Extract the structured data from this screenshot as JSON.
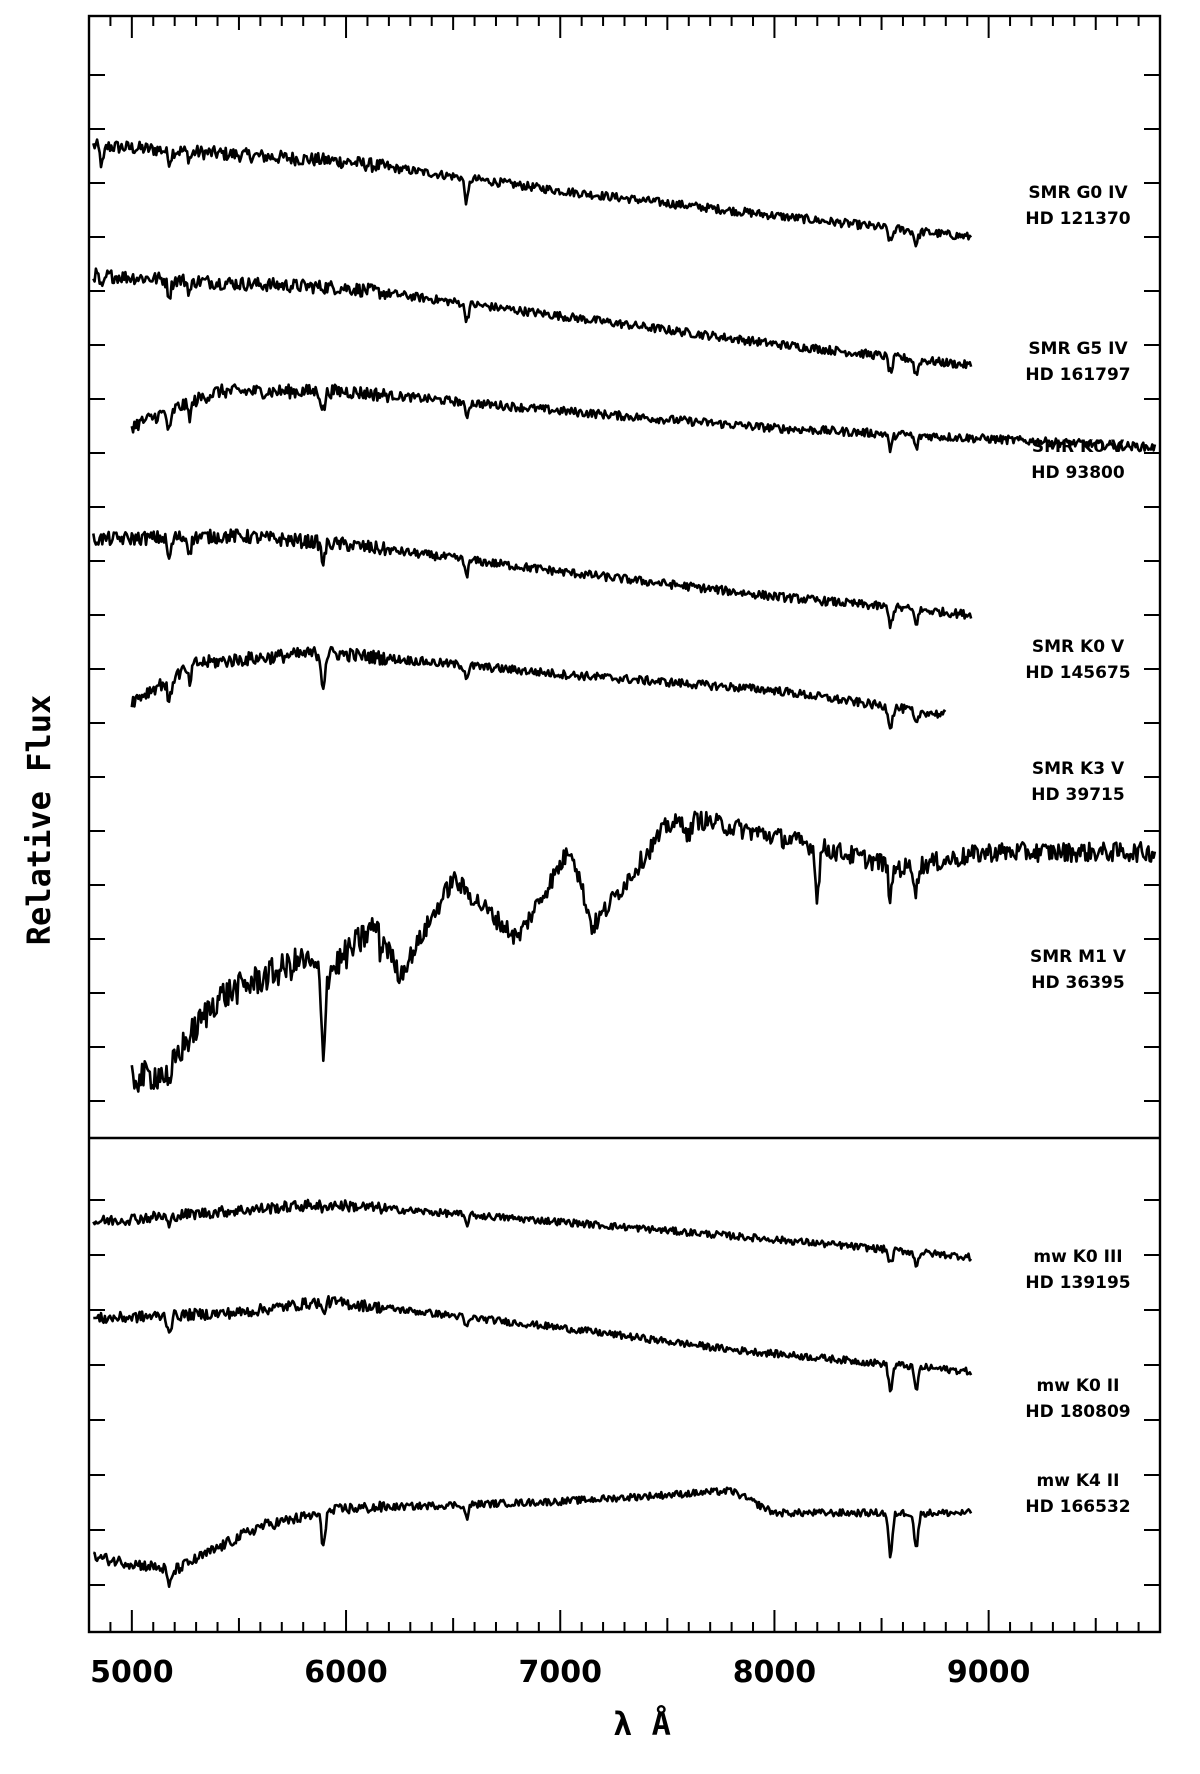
{
  "chart_data": {
    "type": "line",
    "title": "",
    "xlabel": "λ Å",
    "ylabel": "Relative Flux",
    "xlim": [
      4800,
      9800
    ],
    "x_ticks": [
      5000,
      6000,
      7000,
      8000,
      9000
    ],
    "grid": false,
    "legend": "none",
    "panels": [
      {
        "name": "upper",
        "series": [
          {
            "label_line1": "SMR G0 IV",
            "label_line2": "HD 121370",
            "x_range": [
              4820,
              8920
            ],
            "continuum": [
              [
                4820,
                4.2
              ],
              [
                6000,
                4.05
              ],
              [
                7000,
                3.78
              ],
              [
                8000,
                3.55
              ],
              [
                8920,
                3.35
              ]
            ],
            "absorption": [
              [
                4861,
                0.18
              ],
              [
                5175,
                0.09
              ],
              [
                5270,
                0.06
              ],
              [
                6563,
                0.22
              ],
              [
                8542,
                0.13
              ],
              [
                8662,
                0.12
              ]
            ]
          },
          {
            "label_line1": "SMR G5 IV",
            "label_line2": "HD 161797",
            "x_range": [
              4820,
              8920
            ],
            "continuum": [
              [
                4820,
                3.0
              ],
              [
                5500,
                2.92
              ],
              [
                6000,
                2.88
              ],
              [
                7000,
                2.62
              ],
              [
                8000,
                2.36
              ],
              [
                8920,
                2.16
              ]
            ],
            "absorption": [
              [
                4861,
                0.14
              ],
              [
                5175,
                0.14
              ],
              [
                5270,
                0.1
              ],
              [
                6563,
                0.14
              ],
              [
                8542,
                0.15
              ],
              [
                8662,
                0.14
              ]
            ]
          },
          {
            "label_line1": "SMR K0 V",
            "label_line2": "HD 93800",
            "x_range": [
              5000,
              9780
            ],
            "continuum": [
              [
                5000,
                1.6
              ],
              [
                5400,
                1.92
              ],
              [
                6000,
                1.92
              ],
              [
                7000,
                1.74
              ],
              [
                8000,
                1.58
              ],
              [
                9000,
                1.48
              ],
              [
                9780,
                1.4
              ]
            ],
            "absorption": [
              [
                5175,
                0.2
              ],
              [
                5270,
                0.12
              ],
              [
                5893,
                0.18
              ],
              [
                6563,
                0.12
              ],
              [
                8542,
                0.14
              ],
              [
                8662,
                0.12
              ]
            ]
          },
          {
            "label_line1": "SMR K0 V",
            "label_line2": "HD 145675",
            "x_range": [
              4820,
              8920
            ],
            "continuum": [
              [
                4820,
                0.55
              ],
              [
                5500,
                0.58
              ],
              [
                6000,
                0.5
              ],
              [
                7000,
                0.25
              ],
              [
                8000,
                0.02
              ],
              [
                8920,
                -0.15
              ]
            ],
            "absorption": [
              [
                5175,
                0.2
              ],
              [
                5270,
                0.12
              ],
              [
                5893,
                0.18
              ],
              [
                6563,
                0.13
              ],
              [
                8542,
                0.16
              ],
              [
                8662,
                0.12
              ]
            ]
          },
          {
            "label_line1": "SMR K3 V",
            "label_line2": "HD 39715",
            "x_range": [
              5000,
              8800
            ],
            "continuum": [
              [
                5000,
                -0.95
              ],
              [
                5300,
                -0.6
              ],
              [
                5900,
                -0.5
              ],
              [
                7000,
                -0.7
              ],
              [
                8000,
                -0.85
              ],
              [
                8800,
                -1.08
              ]
            ],
            "absorption": [
              [
                5175,
                0.22
              ],
              [
                5270,
                0.14
              ],
              [
                5893,
                0.3
              ],
              [
                6563,
                0.1
              ],
              [
                8542,
                0.18
              ],
              [
                8662,
                0.14
              ]
            ]
          },
          {
            "label_line1": "SMR M1 V",
            "label_line2": "HD 36395",
            "x_range": [
              5000,
              9780
            ],
            "continuum": [
              [
                5000,
                -4.45
              ],
              [
                5150,
                -4.4
              ],
              [
                5400,
                -3.7
              ],
              [
                5800,
                -3.35
              ],
              [
                5900,
                -3.5
              ],
              [
                6000,
                -3.3
              ],
              [
                6150,
                -3.0
              ],
              [
                6250,
                -3.5
              ],
              [
                6500,
                -2.6
              ],
              [
                6800,
                -3.15
              ],
              [
                7050,
                -2.3
              ],
              [
                7150,
                -3.05
              ],
              [
                7500,
                -2.1
              ],
              [
                7650,
                -2.05
              ],
              [
                8100,
                -2.25
              ],
              [
                8600,
                -2.5
              ],
              [
                9000,
                -2.35
              ],
              [
                9780,
                -2.35
              ]
            ],
            "absorption": [
              [
                5175,
                0.25
              ],
              [
                5893,
                0.7
              ],
              [
                6160,
                0.2
              ],
              [
                7600,
                0.15
              ],
              [
                8200,
                0.45
              ],
              [
                8542,
                0.3
              ],
              [
                8662,
                0.22
              ]
            ]
          }
        ]
      },
      {
        "name": "lower",
        "series": [
          {
            "label_line1": "mw K0 III",
            "label_line2": "HD 139195",
            "x_range": [
              4820,
              8920
            ],
            "continuum": [
              [
                4820,
                1.45
              ],
              [
                5500,
                1.58
              ],
              [
                5900,
                1.65
              ],
              [
                7000,
                1.45
              ],
              [
                8000,
                1.25
              ],
              [
                8920,
                1.05
              ]
            ],
            "absorption": [
              [
                5175,
                0.12
              ],
              [
                5893,
                0.08
              ],
              [
                6563,
                0.1
              ],
              [
                8542,
                0.16
              ],
              [
                8662,
                0.14
              ]
            ]
          },
          {
            "label_line1": "mw K0 II",
            "label_line2": "HD 180809",
            "x_range": [
              4820,
              8920
            ],
            "continuum": [
              [
                4820,
                0.35
              ],
              [
                5500,
                0.42
              ],
              [
                5900,
                0.55
              ],
              [
                7000,
                0.25
              ],
              [
                7800,
                0.0
              ],
              [
                8920,
                -0.25
              ]
            ],
            "absorption": [
              [
                5175,
                0.18
              ],
              [
                5893,
                0.14
              ],
              [
                6563,
                0.12
              ],
              [
                8542,
                0.3
              ],
              [
                8662,
                0.26
              ]
            ]
          },
          {
            "label_line1": "mw K4 II",
            "label_line2": "HD 166532",
            "x_range": [
              4820,
              8920
            ],
            "continuum": [
              [
                4820,
                -2.35
              ],
              [
                5200,
                -2.5
              ],
              [
                5600,
                -2.0
              ],
              [
                6000,
                -1.8
              ],
              [
                7000,
                -1.72
              ],
              [
                7800,
                -1.6
              ],
              [
                8000,
                -1.85
              ],
              [
                8920,
                -1.85
              ]
            ],
            "absorption": [
              [
                5175,
                0.2
              ],
              [
                5893,
                0.35
              ],
              [
                6563,
                0.15
              ],
              [
                8542,
                0.5
              ],
              [
                8662,
                0.4
              ]
            ]
          }
        ]
      }
    ]
  }
}
